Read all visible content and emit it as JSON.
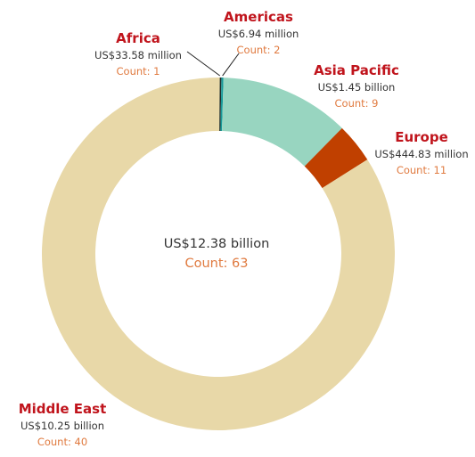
{
  "chart_data": {
    "type": "pie",
    "variant": "donut",
    "total": {
      "label": "US$12.38 billion",
      "count_label": "Count: 63",
      "value_billion": 12.38,
      "count": 63
    },
    "series": [
      {
        "name": "Africa",
        "amount": "US$33.58 million",
        "value_billion": 0.03358,
        "count_label": "Count: 1",
        "count": 1,
        "color": "#1a2a2c"
      },
      {
        "name": "Americas",
        "amount": "US$6.94 million",
        "value_billion": 0.00694,
        "count_label": "Count: 2",
        "count": 2,
        "color": "#1a9a99"
      },
      {
        "name": "Asia Pacific",
        "amount": "US$1.45 billion",
        "value_billion": 1.45,
        "count_label": "Count: 9",
        "count": 9,
        "color": "#98d5c0"
      },
      {
        "name": "Europe",
        "amount": "US$444.83 million",
        "value_billion": 0.44483,
        "count_label": "Count: 11",
        "count": 11,
        "color": "#c04000"
      },
      {
        "name": "Middle East",
        "amount": "US$10.25 billion",
        "value_billion": 10.25,
        "count_label": "Count: 40",
        "count": 40,
        "color": "#e8d8a8"
      }
    ]
  }
}
